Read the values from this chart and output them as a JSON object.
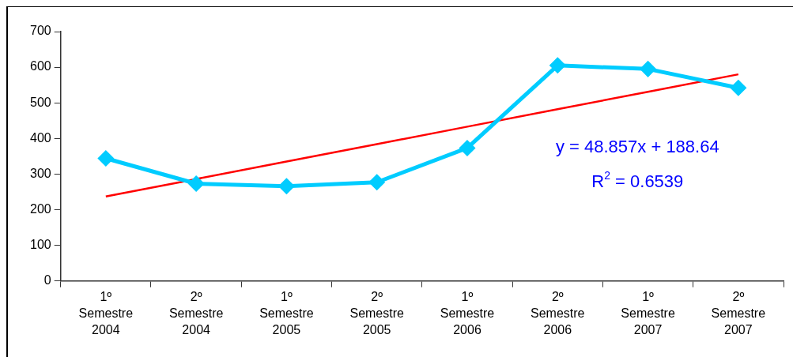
{
  "chart_data": {
    "type": "line",
    "categories": [
      "1º\nSemestre\n2004",
      "2º\nSemestre\n2004",
      "1º\nSemestre\n2005",
      "2º\nSemestre\n2005",
      "1º\nSemestre\n2006",
      "2º\nSemestre\n2006",
      "1º\nSemestre\n2007",
      "2º\nSemestre\n2007"
    ],
    "series": [
      {
        "color": "#00ccff",
        "marker": "diamond",
        "values": [
          344,
          273,
          266,
          277,
          373,
          605,
          595,
          542
        ]
      },
      {
        "color": "#ff0000",
        "marker": "none",
        "values": [
          237,
          286,
          335,
          384,
          433,
          482,
          531,
          580
        ]
      }
    ],
    "ylim": [
      0,
      700
    ],
    "yticks": [
      0,
      100,
      200,
      300,
      400,
      500,
      600,
      700
    ],
    "grid": false,
    "legend": false,
    "annotations": [
      "y = 48.857x + 188.64",
      "R$^{2}$ = 0.6539"
    ]
  }
}
